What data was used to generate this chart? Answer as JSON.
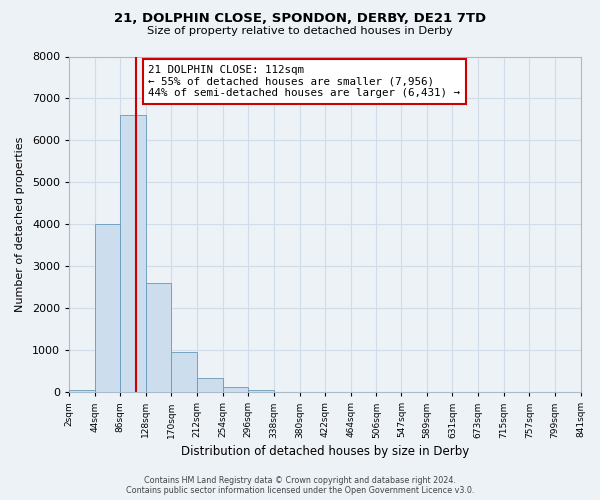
{
  "title": "21, DOLPHIN CLOSE, SPONDON, DERBY, DE21 7TD",
  "subtitle": "Size of property relative to detached houses in Derby",
  "xlabel": "Distribution of detached houses by size in Derby",
  "ylabel": "Number of detached properties",
  "bin_edges": [
    2,
    44,
    86,
    128,
    170,
    212,
    254,
    296,
    338,
    380,
    422,
    464,
    506,
    547,
    589,
    631,
    673,
    715,
    757,
    799,
    841
  ],
  "bin_labels": [
    "2sqm",
    "44sqm",
    "86sqm",
    "128sqm",
    "170sqm",
    "212sqm",
    "254sqm",
    "296sqm",
    "338sqm",
    "380sqm",
    "422sqm",
    "464sqm",
    "506sqm",
    "547sqm",
    "589sqm",
    "631sqm",
    "673sqm",
    "715sqm",
    "757sqm",
    "799sqm",
    "841sqm"
  ],
  "bar_heights": [
    50,
    4000,
    6600,
    2600,
    960,
    330,
    130,
    60,
    0,
    0,
    0,
    0,
    0,
    0,
    0,
    0,
    0,
    0,
    0,
    0
  ],
  "bar_color": "#ccdded",
  "bar_edge_color": "#6699bb",
  "ylim": [
    0,
    8000
  ],
  "yticks": [
    0,
    1000,
    2000,
    3000,
    4000,
    5000,
    6000,
    7000,
    8000
  ],
  "property_size": 112,
  "vline_color": "#cc0000",
  "annotation_title": "21 DOLPHIN CLOSE: 112sqm",
  "annotation_line1": "← 55% of detached houses are smaller (7,956)",
  "annotation_line2": "44% of semi-detached houses are larger (6,431) →",
  "annotation_box_facecolor": "#ffffff",
  "annotation_box_edgecolor": "#cc0000",
  "footer_line1": "Contains HM Land Registry data © Crown copyright and database right 2024.",
  "footer_line2": "Contains public sector information licensed under the Open Government Licence v3.0.",
  "grid_color": "#d0dce8",
  "background_color": "#edf2f7",
  "plot_bg_color": "#edf2f7"
}
